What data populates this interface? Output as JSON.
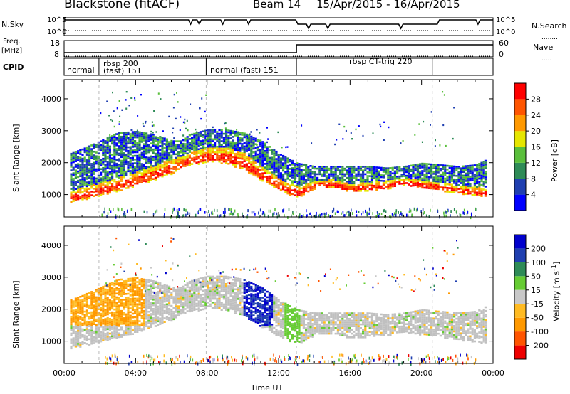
{
  "header": {
    "station": "Blackstone (fitACF)",
    "beam": "Beam 14",
    "date_range": "15/Apr/2015 - 16/Apr/2015"
  },
  "strip_labels": {
    "nsky": "N.Sky",
    "nsearch": "N.Search",
    "freq": "Freq.",
    "freq_unit": "[MHz]",
    "nave": "Nave",
    "cpid": "CPID"
  },
  "colors": {
    "power": [
      "#0000ff",
      "#1f3fb0",
      "#2e8b57",
      "#5abf3c",
      "#e6e600",
      "#ff9900",
      "#ff5500",
      "#ff0000"
    ],
    "velocity": [
      "#ee0000",
      "#ff5500",
      "#ff9900",
      "#ffbb22",
      "#c8c8c8",
      "#66cc33",
      "#2e8b57",
      "#1f3fb0",
      "#0000cc"
    ],
    "ground_scatter": "#c0c0c0"
  },
  "chart_data": [
    {
      "type": "line",
      "title": "Blackstone (fitACF)",
      "panel": "N.Sky / N.Search",
      "left_ticks": [
        "10^5",
        "10^0"
      ],
      "right_ticks": [
        "10^5",
        "10^0"
      ],
      "x": [
        "00:00",
        "24:00"
      ],
      "series": [
        {
          "name": "N.Sky",
          "style": "solid"
        },
        {
          "name": "N.Search",
          "style": "dotted"
        }
      ]
    },
    {
      "type": "line",
      "panel": "Freq. / Nave",
      "left_ticks": [
        18,
        8
      ],
      "right_ticks": [
        60,
        0
      ],
      "series": [
        {
          "name": "Freq.",
          "unit": "MHz",
          "x_hours": [
            0,
            13,
            13,
            24
          ],
          "values": [
            10,
            10,
            16,
            16
          ]
        },
        {
          "name": "Nave",
          "style": "dotted",
          "values": [
            0,
            0
          ]
        }
      ]
    },
    {
      "type": "table",
      "panel": "CPID",
      "segments": [
        {
          "start": 0.0,
          "end": 1.95,
          "line1": "",
          "line2": "normal"
        },
        {
          "start": 1.95,
          "end": 7.95,
          "line1": "rbsp 200",
          "line2": "(fast) 151"
        },
        {
          "start": 7.95,
          "end": 13.0,
          "line1": "",
          "line2": "normal (fast) 151"
        },
        {
          "start": 13.0,
          "end": 20.6,
          "line1": "rbsp CT-trig 220",
          "line2": ""
        },
        {
          "start": 20.6,
          "end": 24.0,
          "line1": "",
          "line2": ""
        }
      ]
    },
    {
      "type": "heatmap",
      "panel": "Power",
      "ylabel": "Slant Range [km]",
      "yticks": [
        1000,
        2000,
        3000,
        4000
      ],
      "ylim": [
        300,
        4600
      ],
      "xlim": [
        0,
        24
      ],
      "colorbar": {
        "label": "Power [dB]",
        "ticks": [
          4,
          8,
          12,
          16,
          20,
          24,
          28
        ],
        "range": [
          0,
          32
        ]
      },
      "bands": [
        {
          "name": "main",
          "x": [
            0.3,
            1,
            2,
            3,
            4,
            5,
            6,
            6.5,
            7,
            8,
            9,
            10,
            11,
            12,
            13,
            14,
            15,
            16,
            17,
            18,
            19,
            20,
            21,
            22,
            23,
            23.6
          ],
          "center": [
            900,
            1000,
            1150,
            1300,
            1450,
            1650,
            1850,
            2000,
            2100,
            2200,
            2200,
            2000,
            1650,
            1300,
            1050,
            1300,
            1350,
            1200,
            1250,
            1300,
            1400,
            1300,
            1250,
            1150,
            1100,
            1050
          ],
          "width": [
            250,
            300,
            300,
            320,
            350,
            350,
            350,
            300,
            300,
            350,
            400,
            400,
            350,
            300,
            250,
            200,
            200,
            200,
            200,
            200,
            200,
            200,
            200,
            200,
            200,
            200
          ]
        },
        {
          "name": "upper",
          "x": [
            0.3,
            1,
            2,
            3,
            4,
            5,
            6,
            6.5,
            7,
            8,
            9,
            10,
            11,
            12,
            13,
            14,
            15,
            16,
            17,
            18,
            19,
            20,
            21,
            22,
            23,
            23.6
          ],
          "center": [
            1800,
            1850,
            2000,
            2250,
            2400,
            2400,
            2300,
            2300,
            2400,
            2550,
            2550,
            2450,
            2200,
            1900,
            1700,
            1650,
            1650,
            1650,
            1650,
            1600,
            1650,
            1750,
            1700,
            1650,
            1700,
            1800
          ],
          "width": [
            500,
            600,
            700,
            700,
            600,
            500,
            400,
            400,
            500,
            500,
            500,
            500,
            500,
            400,
            300,
            250,
            250,
            250,
            250,
            250,
            250,
            250,
            250,
            250,
            250,
            300
          ]
        }
      ]
    },
    {
      "type": "heatmap",
      "panel": "Velocity",
      "ylabel": "Slant Range [km]",
      "xlabel": "Time UT",
      "yticks": [
        1000,
        2000,
        3000,
        4000
      ],
      "ylim": [
        300,
        4600
      ],
      "xlim": [
        0,
        24
      ],
      "xticks": [
        "00:00",
        "04:00",
        "08:00",
        "12:00",
        "16:00",
        "20:00",
        "00:00"
      ],
      "colorbar": {
        "label": "Velocity [m s^-1]",
        "ticks": [
          -200,
          -100,
          -50,
          -15,
          15,
          50,
          100,
          200
        ]
      },
      "note_ground_scatter": "grey"
    }
  ]
}
